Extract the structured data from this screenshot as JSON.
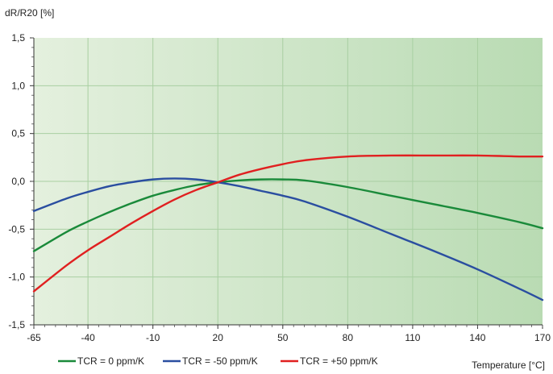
{
  "chart_data": {
    "type": "line",
    "ylabel": "dR/R20 [%]",
    "xlabel": "Temperature [°C]",
    "xlim": [
      -65,
      170
    ],
    "ylim": [
      -1.5,
      1.5
    ],
    "x_ticks": [
      -65,
      -40,
      -10,
      20,
      50,
      80,
      110,
      140,
      170
    ],
    "y_ticks": [
      1.5,
      1.0,
      0.5,
      0.0,
      -0.5,
      -1.0,
      -1.5
    ],
    "x_tick_labels": [
      "-65",
      "-40",
      "-10",
      "20",
      "50",
      "80",
      "110",
      "140",
      "170"
    ],
    "y_tick_labels": [
      "1,5",
      "1,0",
      "0,5",
      "0,0",
      "-0,5",
      "-1,0",
      "-1,5"
    ],
    "grid": true,
    "legend_position": "bottom",
    "series": [
      {
        "name": "TCR = 0 ppm/K",
        "color": "#1a8a3a",
        "x": [
          -65,
          -50,
          -40,
          -30,
          -20,
          -10,
          0,
          10,
          20,
          30,
          40,
          50,
          60,
          80,
          100,
          120,
          140,
          160,
          170
        ],
        "y": [
          -0.73,
          -0.53,
          -0.42,
          -0.32,
          -0.23,
          -0.15,
          -0.09,
          -0.04,
          -0.01,
          0.01,
          0.02,
          0.02,
          0.01,
          -0.06,
          -0.15,
          -0.24,
          -0.33,
          -0.43,
          -0.49
        ]
      },
      {
        "name": "TCR =  -50 ppm/K",
        "color": "#2a4ea0",
        "x": [
          -65,
          -50,
          -40,
          -30,
          -20,
          -10,
          0,
          10,
          20,
          30,
          40,
          50,
          60,
          80,
          100,
          120,
          140,
          160,
          170
        ],
        "y": [
          -0.31,
          -0.18,
          -0.11,
          -0.05,
          -0.01,
          0.02,
          0.03,
          0.02,
          -0.01,
          -0.05,
          -0.1,
          -0.15,
          -0.21,
          -0.37,
          -0.55,
          -0.73,
          -0.92,
          -1.13,
          -1.24
        ]
      },
      {
        "name": "TCR = +50 ppm/K",
        "color": "#e02020",
        "x": [
          -65,
          -50,
          -40,
          -30,
          -20,
          -10,
          0,
          10,
          20,
          30,
          40,
          50,
          60,
          80,
          100,
          120,
          140,
          160,
          170
        ],
        "y": [
          -1.15,
          -0.88,
          -0.72,
          -0.58,
          -0.44,
          -0.31,
          -0.19,
          -0.09,
          -0.01,
          0.07,
          0.13,
          0.18,
          0.22,
          0.26,
          0.27,
          0.27,
          0.27,
          0.26,
          0.26
        ]
      }
    ]
  }
}
